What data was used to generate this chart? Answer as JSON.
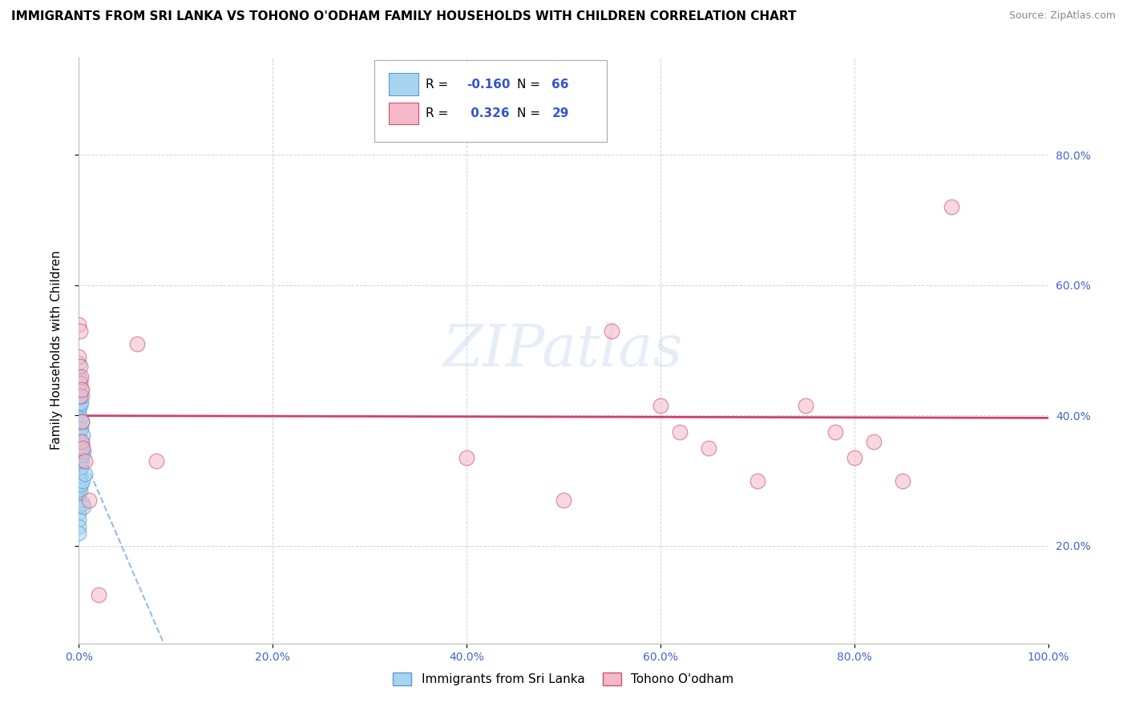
{
  "title": "IMMIGRANTS FROM SRI LANKA VS TOHONO O'ODHAM FAMILY HOUSEHOLDS WITH CHILDREN CORRELATION CHART",
  "source": "Source: ZipAtlas.com",
  "ylabel": "Family Households with Children",
  "xlim": [
    0.0,
    1.0
  ],
  "ylim": [
    0.05,
    0.95
  ],
  "xticks": [
    0.0,
    0.2,
    0.4,
    0.6,
    0.8,
    1.0
  ],
  "yticks": [
    0.2,
    0.4,
    0.6,
    0.8
  ],
  "xticklabels": [
    "0.0%",
    "20.0%",
    "40.0%",
    "60.0%",
    "80.0%",
    "100.0%"
  ],
  "yticklabels_right": [
    "20.0%",
    "40.0%",
    "60.0%",
    "80.0%"
  ],
  "blue_R": "-0.160",
  "blue_N": "66",
  "pink_R": "0.326",
  "pink_N": "29",
  "legend1_label": "Immigrants from Sri Lanka",
  "legend2_label": "Tohono O'odham",
  "blue_fill": "#a8d4f0",
  "blue_edge": "#5b9bd5",
  "pink_fill": "#f4b8c8",
  "pink_edge": "#d05070",
  "blue_line": "#4a90d9",
  "pink_line": "#d04070",
  "tick_color": "#4466cc",
  "watermark": "ZIPatlas",
  "blue_scatter": [
    [
      0.0,
      0.48
    ],
    [
      0.0,
      0.46
    ],
    [
      0.0,
      0.45
    ],
    [
      0.0,
      0.44
    ],
    [
      0.0,
      0.43
    ],
    [
      0.0,
      0.42
    ],
    [
      0.0,
      0.415
    ],
    [
      0.0,
      0.405
    ],
    [
      0.0,
      0.395
    ],
    [
      0.0,
      0.39
    ],
    [
      0.0,
      0.385
    ],
    [
      0.0,
      0.38
    ],
    [
      0.0,
      0.375
    ],
    [
      0.0,
      0.37
    ],
    [
      0.0,
      0.365
    ],
    [
      0.0,
      0.36
    ],
    [
      0.0,
      0.355
    ],
    [
      0.0,
      0.35
    ],
    [
      0.0,
      0.345
    ],
    [
      0.0,
      0.34
    ],
    [
      0.0,
      0.335
    ],
    [
      0.0,
      0.33
    ],
    [
      0.0,
      0.325
    ],
    [
      0.0,
      0.32
    ],
    [
      0.0,
      0.315
    ],
    [
      0.0,
      0.31
    ],
    [
      0.0,
      0.305
    ],
    [
      0.0,
      0.3
    ],
    [
      0.0,
      0.29
    ],
    [
      0.0,
      0.28
    ],
    [
      0.0,
      0.27
    ],
    [
      0.0,
      0.26
    ],
    [
      0.0,
      0.25
    ],
    [
      0.0,
      0.24
    ],
    [
      0.0,
      0.23
    ],
    [
      0.0,
      0.22
    ],
    [
      0.001,
      0.455
    ],
    [
      0.001,
      0.415
    ],
    [
      0.001,
      0.395
    ],
    [
      0.001,
      0.38
    ],
    [
      0.001,
      0.36
    ],
    [
      0.001,
      0.35
    ],
    [
      0.001,
      0.34
    ],
    [
      0.001,
      0.33
    ],
    [
      0.001,
      0.32
    ],
    [
      0.001,
      0.31
    ],
    [
      0.001,
      0.3
    ],
    [
      0.001,
      0.285
    ],
    [
      0.002,
      0.44
    ],
    [
      0.002,
      0.42
    ],
    [
      0.002,
      0.38
    ],
    [
      0.002,
      0.36
    ],
    [
      0.002,
      0.34
    ],
    [
      0.002,
      0.32
    ],
    [
      0.002,
      0.295
    ],
    [
      0.003,
      0.43
    ],
    [
      0.003,
      0.39
    ],
    [
      0.003,
      0.355
    ],
    [
      0.003,
      0.33
    ],
    [
      0.004,
      0.37
    ],
    [
      0.004,
      0.34
    ],
    [
      0.004,
      0.3
    ],
    [
      0.004,
      0.265
    ],
    [
      0.005,
      0.345
    ],
    [
      0.005,
      0.26
    ],
    [
      0.006,
      0.31
    ]
  ],
  "pink_scatter": [
    [
      0.0,
      0.54
    ],
    [
      0.0,
      0.49
    ],
    [
      0.001,
      0.53
    ],
    [
      0.001,
      0.475
    ],
    [
      0.001,
      0.45
    ],
    [
      0.001,
      0.43
    ],
    [
      0.002,
      0.46
    ],
    [
      0.003,
      0.44
    ],
    [
      0.003,
      0.39
    ],
    [
      0.003,
      0.36
    ],
    [
      0.004,
      0.35
    ],
    [
      0.006,
      0.33
    ],
    [
      0.01,
      0.27
    ],
    [
      0.02,
      0.125
    ],
    [
      0.06,
      0.51
    ],
    [
      0.08,
      0.33
    ],
    [
      0.4,
      0.335
    ],
    [
      0.5,
      0.27
    ],
    [
      0.55,
      0.53
    ],
    [
      0.6,
      0.415
    ],
    [
      0.62,
      0.375
    ],
    [
      0.65,
      0.35
    ],
    [
      0.7,
      0.3
    ],
    [
      0.75,
      0.415
    ],
    [
      0.78,
      0.375
    ],
    [
      0.8,
      0.335
    ],
    [
      0.82,
      0.36
    ],
    [
      0.85,
      0.3
    ],
    [
      0.9,
      0.72
    ]
  ],
  "title_fontsize": 11,
  "source_fontsize": 9,
  "tick_fontsize": 10,
  "ylabel_fontsize": 11
}
